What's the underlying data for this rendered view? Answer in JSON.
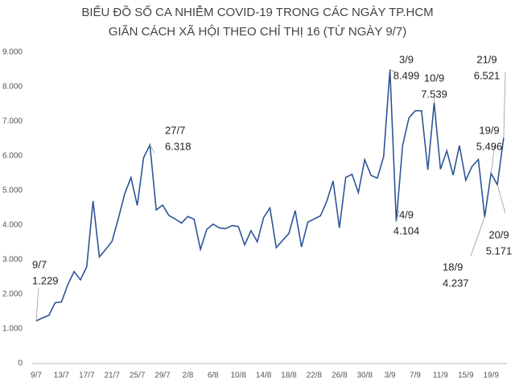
{
  "chart_data": {
    "type": "line",
    "title": [
      "BIỂU ĐỒ SỐ CA NHIỄM COVID-19 TRONG CÁC NGÀY TP.HCM",
      "GIÃN CÁCH XÃ HỘI THEO CHỈ THỊ 16 (TỪ NGÀY 9/7)"
    ],
    "categories": [
      "9/7",
      null,
      null,
      null,
      "13/7",
      null,
      null,
      null,
      "17/7",
      null,
      null,
      null,
      "21/7",
      null,
      null,
      null,
      "25/7",
      null,
      "27/7",
      null,
      "29/7",
      null,
      null,
      null,
      "2/8",
      null,
      null,
      null,
      "6/8",
      null,
      null,
      null,
      "10/8",
      null,
      null,
      null,
      "14/8",
      null,
      null,
      null,
      "18/8",
      null,
      null,
      null,
      "22/8",
      null,
      null,
      null,
      "26/8",
      null,
      null,
      null,
      "30/8",
      null,
      null,
      null,
      "3/9",
      "4/9",
      null,
      null,
      "7/9",
      null,
      null,
      "10/9",
      "11/9",
      null,
      null,
      null,
      "15/9",
      null,
      null,
      "18/9",
      "19/9",
      "20/9",
      "21/9"
    ],
    "series": [
      {
        "color": "#2e5597",
        "values": [
          1229,
          1320,
          1390,
          1760,
          1780,
          2280,
          2660,
          2420,
          2800,
          4700,
          3080,
          3300,
          3530,
          4190,
          4900,
          5380,
          4570,
          5950,
          6318,
          4440,
          4580,
          4280,
          4180,
          4060,
          4250,
          4170,
          3300,
          3880,
          4030,
          3920,
          3900,
          3990,
          3960,
          3430,
          3840,
          3520,
          4220,
          4500,
          3350,
          3560,
          3760,
          4420,
          3370,
          4090,
          4180,
          4270,
          4690,
          5280,
          3920,
          5380,
          5470,
          4940,
          5890,
          5440,
          5360,
          5980,
          8499,
          4104,
          6300,
          7100,
          7310,
          7310,
          5600,
          7539,
          5620,
          6150,
          5450,
          6300,
          5300,
          5700,
          5900,
          4237,
          5496,
          5171,
          6521
        ],
        "value_labels": [
          "1.229",
          null,
          null,
          null,
          null,
          null,
          null,
          null,
          null,
          null,
          null,
          null,
          null,
          null,
          null,
          null,
          null,
          null,
          "6.318",
          null,
          null,
          null,
          null,
          null,
          null,
          null,
          null,
          null,
          null,
          null,
          null,
          null,
          null,
          null,
          null,
          null,
          null,
          null,
          null,
          null,
          null,
          null,
          null,
          null,
          null,
          null,
          null,
          null,
          null,
          null,
          null,
          null,
          null,
          null,
          null,
          null,
          "8.499",
          "4.104",
          null,
          null,
          null,
          null,
          null,
          "7.539",
          null,
          null,
          null,
          null,
          null,
          null,
          null,
          "4.237",
          "5.496",
          "5.171",
          "6.521"
        ]
      }
    ],
    "ylim": [
      0,
      9000
    ],
    "yticks": [
      {
        "value": 0,
        "label": "0"
      },
      {
        "value": 1000,
        "label": "1.000"
      },
      {
        "value": 2000,
        "label": "2.000"
      },
      {
        "value": 3000,
        "label": "3.000"
      },
      {
        "value": 4000,
        "label": "4.000"
      },
      {
        "value": 5000,
        "label": "5.000"
      },
      {
        "value": 6000,
        "label": "6.000"
      },
      {
        "value": 7000,
        "label": "7.000"
      },
      {
        "value": 8000,
        "label": "8.000"
      },
      {
        "value": 9000,
        "label": "9.000"
      }
    ],
    "grid": false
  }
}
